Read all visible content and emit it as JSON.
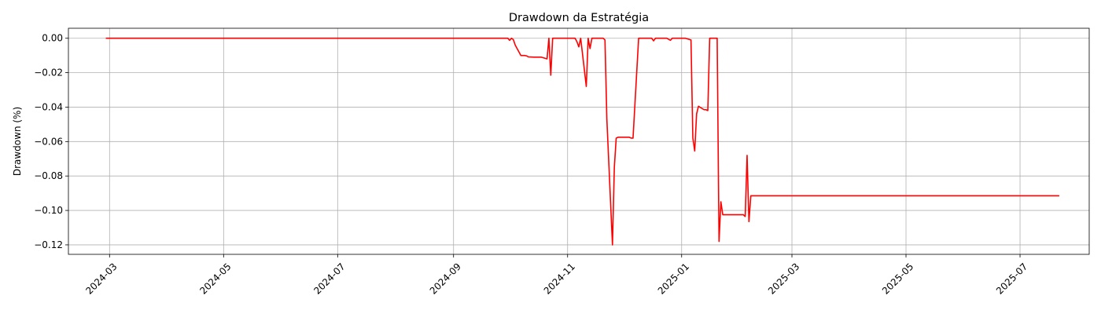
{
  "chart_data": {
    "type": "line",
    "title": "Drawdown da Estratégia",
    "xlabel": "",
    "ylabel": "Drawdown (%)",
    "x_type": "date",
    "xlim": [
      "2024-02-08",
      "2025-08-07"
    ],
    "ylim": [
      -0.1255,
      0.0058
    ],
    "x_ticks": [
      "2024-03-01",
      "2024-05-01",
      "2024-07-01",
      "2024-09-01",
      "2024-11-01",
      "2025-01-01",
      "2025-03-01",
      "2025-05-01",
      "2025-07-01"
    ],
    "x_tick_labels": [
      "2024-03",
      "2024-05",
      "2024-07",
      "2024-09",
      "2024-11",
      "2025-01",
      "2025-03",
      "2025-05",
      "2025-07"
    ],
    "y_ticks": [
      0.0,
      -0.02,
      -0.04,
      -0.06,
      -0.08,
      -0.1,
      -0.12
    ],
    "y_tick_labels": [
      "0.00",
      "−0.02",
      "−0.04",
      "−0.06",
      "−0.08",
      "−0.10",
      "−0.12"
    ],
    "grid": true,
    "legend": "none",
    "series": [
      {
        "color": "#ff0000",
        "x": [
          "2024-02-28",
          "2024-09-30",
          "2024-10-01",
          "2024-10-02",
          "2024-10-03",
          "2024-10-04",
          "2024-10-07",
          "2024-10-08",
          "2024-10-09",
          "2024-10-10",
          "2024-10-11",
          "2024-10-14",
          "2024-10-15",
          "2024-10-16",
          "2024-10-17",
          "2024-10-18",
          "2024-10-21",
          "2024-10-22",
          "2024-10-23",
          "2024-10-24",
          "2024-10-25",
          "2024-10-28",
          "2024-10-29",
          "2024-10-30",
          "2024-10-31",
          "2024-11-01",
          "2024-11-04",
          "2024-11-05",
          "2024-11-06",
          "2024-11-07",
          "2024-11-08",
          "2024-11-11",
          "2024-11-12",
          "2024-11-13",
          "2024-11-14",
          "2024-11-15",
          "2024-11-18",
          "2024-11-19",
          "2024-11-20",
          "2024-11-21",
          "2024-11-22",
          "2024-11-25",
          "2024-11-26",
          "2024-11-27",
          "2024-11-28",
          "2024-11-29",
          "2024-12-02",
          "2024-12-03",
          "2024-12-04",
          "2024-12-05",
          "2024-12-06",
          "2024-12-09",
          "2024-12-10",
          "2024-12-11",
          "2024-12-12",
          "2024-12-13",
          "2024-12-16",
          "2024-12-17",
          "2024-12-18",
          "2024-12-19",
          "2024-12-20",
          "2024-12-23",
          "2024-12-24",
          "2024-12-26",
          "2024-12-27",
          "2024-12-30",
          "2024-12-31",
          "2025-01-02",
          "2025-01-03",
          "2025-01-06",
          "2025-01-07",
          "2025-01-08",
          "2025-01-09",
          "2025-01-10",
          "2025-01-13",
          "2025-01-14",
          "2025-01-15",
          "2025-01-16",
          "2025-01-17",
          "2025-01-20",
          "2025-01-21",
          "2025-01-22",
          "2025-01-23",
          "2025-01-24",
          "2025-01-27",
          "2025-01-28",
          "2025-01-29",
          "2025-01-30",
          "2025-01-31",
          "2025-02-03",
          "2025-02-04",
          "2025-02-05",
          "2025-02-06",
          "2025-02-07",
          "2025-02-10",
          "2025-07-22"
        ],
        "y": [
          0.0,
          0.0,
          -0.0012,
          0.0,
          -0.0008,
          -0.004,
          -0.01,
          -0.01,
          -0.01,
          -0.0102,
          -0.0108,
          -0.011,
          -0.011,
          -0.011,
          -0.011,
          -0.011,
          -0.012,
          0.0,
          -0.0215,
          0.0,
          0.0,
          0.0,
          0.0,
          0.0,
          0.0,
          0.0,
          0.0,
          0.0,
          -0.002,
          -0.005,
          0.0,
          -0.028,
          0.0,
          -0.006,
          0.0,
          0.0,
          0.0,
          0.0,
          0.0,
          -0.001,
          -0.047,
          -0.12,
          -0.075,
          -0.058,
          -0.0575,
          -0.0575,
          -0.0575,
          -0.0575,
          -0.0575,
          -0.058,
          -0.058,
          0.0,
          0.0,
          0.0,
          0.0,
          0.0,
          0.0,
          -0.0015,
          0.0,
          0.0,
          0.0,
          0.0,
          0.0,
          -0.0012,
          0.0,
          0.0,
          0.0,
          0.0,
          0.0,
          -0.001,
          -0.058,
          -0.0655,
          -0.044,
          -0.0395,
          -0.0415,
          -0.0415,
          -0.042,
          0.0,
          0.0,
          0.0,
          -0.118,
          -0.095,
          -0.1025,
          -0.1025,
          -0.1025,
          -0.1025,
          -0.1025,
          -0.1025,
          -0.1025,
          -0.1025,
          -0.1035,
          -0.068,
          -0.1065,
          -0.0915,
          -0.0915,
          -0.0915
        ]
      }
    ]
  }
}
